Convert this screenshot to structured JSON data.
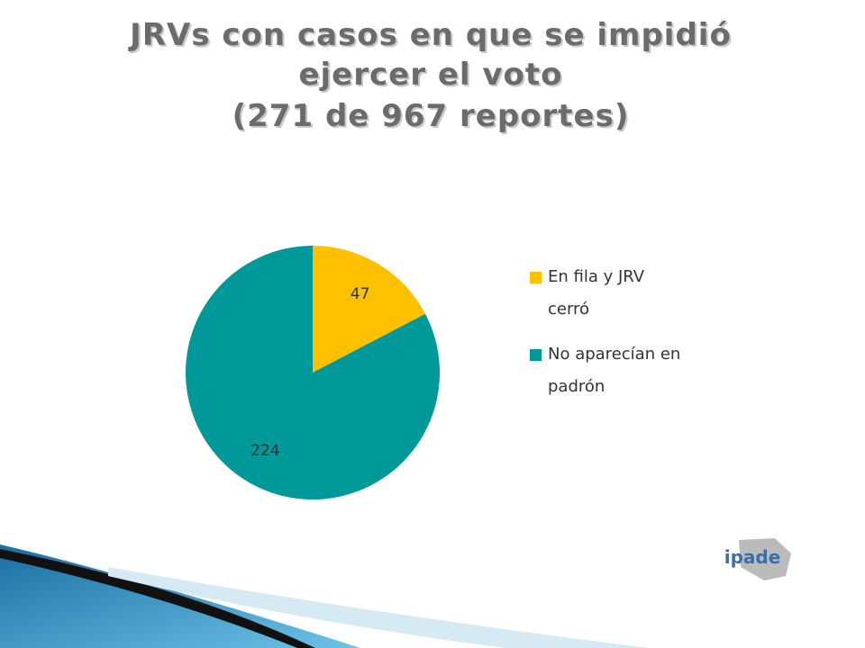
{
  "chart_data": {
    "type": "pie",
    "title": [
      "JRVs con casos en que se impidió",
      "ejercer el voto",
      "(271  de 967 reportes)"
    ],
    "categories": [
      "En fila y JRV cerró",
      "No aparecían en padrón"
    ],
    "values": [
      47,
      224
    ],
    "colors": [
      "#FFC000",
      "#009999"
    ],
    "legend": "right"
  },
  "logo": "ipade"
}
